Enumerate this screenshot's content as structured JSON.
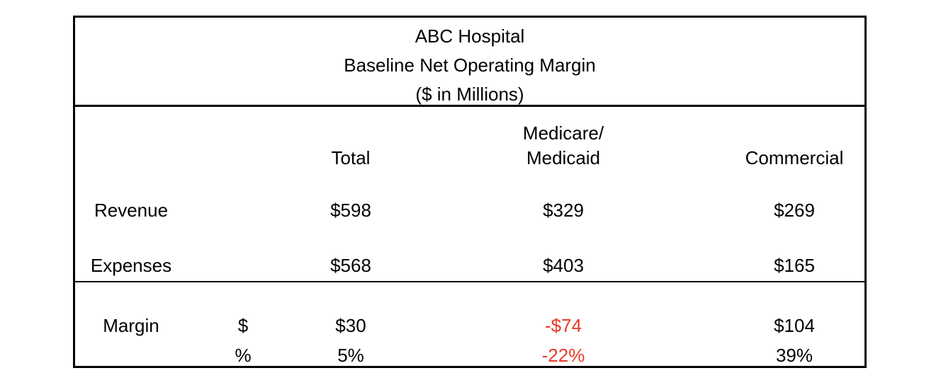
{
  "title": {
    "line1": "ABC Hospital",
    "line2": "Baseline Net Operating Margin",
    "line3": "($ in Millions)"
  },
  "columns": {
    "total": "Total",
    "medicare_line1": "Medicare/",
    "medicare_line2": "Medicaid",
    "commercial": "Commercial"
  },
  "rows": {
    "revenue": {
      "label": "Revenue",
      "total": "$598",
      "medicare_medicaid": "$329",
      "commercial": "$269"
    },
    "expenses": {
      "label": "Expenses",
      "total": "$568",
      "medicare_medicaid": "$403",
      "commercial": "$165"
    }
  },
  "margin": {
    "label": "Margin",
    "dollar_symbol": "$",
    "percent_symbol": "%",
    "dollar": {
      "total": "$30",
      "medicare_medicaid": "-$74",
      "commercial": "$104"
    },
    "percent": {
      "total": "5%",
      "medicare_medicaid": "-22%",
      "commercial": "39%"
    }
  },
  "colors": {
    "text": "#000000",
    "border": "#000000",
    "background": "#ffffff",
    "negative_value": "#e83a28"
  }
}
